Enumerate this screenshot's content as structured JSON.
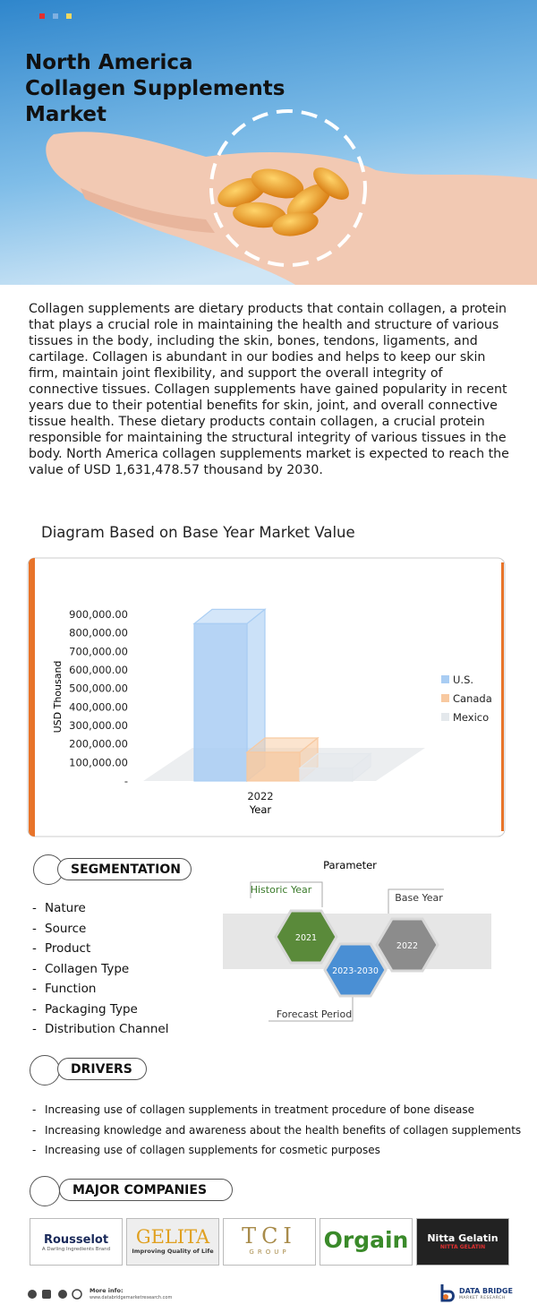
{
  "header": {
    "title_lines": [
      "North America",
      "Collagen Supplements",
      "Market"
    ]
  },
  "description": "Collagen supplements are dietary products that contain collagen, a protein that plays a crucial role in maintaining the health and structure of various tissues in the body, including the skin, bones, tendons, ligaments, and cartilage. Collagen is abundant in our bodies and helps to keep our skin firm, maintain joint flexibility, and support the overall integrity of connective tissues. Collagen supplements have gained popularity in recent years due to their potential benefits for skin, joint, and overall connective tissue health. These dietary products contain collagen, a crucial protein responsible for maintaining the structural integrity of various tissues in the body. North America collagen supplements market is expected to reach the value of USD  1,631,478.57 thousand by 2030.",
  "chart_data": {
    "type": "bar",
    "title": "Diagram Based on Base Year Market Value",
    "x_label": "Year",
    "y_label": "USD Thousand",
    "categories": [
      "2022"
    ],
    "series": [
      {
        "name": "U.S.",
        "color": "#a9cdf3",
        "values": [
          850000
        ]
      },
      {
        "name": "Canada",
        "color": "#f8c9a0",
        "values": [
          155000
        ]
      },
      {
        "name": "Mexico",
        "color": "#e4e8ec",
        "values": [
          70000
        ]
      }
    ],
    "ylim": [
      0,
      900000
    ],
    "yticks": [
      {
        "value": 0,
        "label": "-"
      },
      {
        "value": 100000,
        "label": "100,000.00"
      },
      {
        "value": 200000,
        "label": "200,000.00"
      },
      {
        "value": 300000,
        "label": "300,000.00"
      },
      {
        "value": 400000,
        "label": "400,000.00"
      },
      {
        "value": 500000,
        "label": "500,000.00"
      },
      {
        "value": 600000,
        "label": "600,000.00"
      },
      {
        "value": 700000,
        "label": "700,000.00"
      },
      {
        "value": 800000,
        "label": "800,000.00"
      },
      {
        "value": 900000,
        "label": "900,000.00"
      }
    ],
    "legend": "right"
  },
  "segmentation": {
    "title": "SEGMENTATION",
    "items": [
      "Nature",
      "Source",
      "Product",
      "Collagen Type",
      "Function",
      "Packaging Type",
      "Distribution Channel"
    ]
  },
  "parameter": {
    "title": "Parameter",
    "historic_label": "Historic Year",
    "historic_year": "2021",
    "base_label": "Base Year",
    "base_year": "2022",
    "forecast_label": "Forecast Period",
    "forecast_years": "2023-2030"
  },
  "drivers": {
    "title": "DRIVERS",
    "items": [
      "Increasing use of collagen supplements in treatment procedure of bone disease",
      "Increasing knowledge and awareness about the health benefits of collagen supplements",
      "Increasing use of collagen supplements for cosmetic purposes"
    ]
  },
  "companies": {
    "title": "MAJOR COMPANIES",
    "logos": [
      {
        "name": "Rousselot",
        "tagline": "A Darling Ingredients Brand"
      },
      {
        "name": "GELITA",
        "tagline": "Improving Quality of Life"
      },
      {
        "name": "TCI",
        "tagline": "GROUP"
      },
      {
        "name": "Orgain"
      },
      {
        "name": "Nitta Gelatin",
        "tagline": "NITTA GELATIN"
      }
    ]
  },
  "footer": {
    "more_info": "More info:",
    "url": "www.databridgemarketresearch.com",
    "brand": "DATA BRIDGE",
    "brand_sub": "MARKET RESEARCH"
  }
}
